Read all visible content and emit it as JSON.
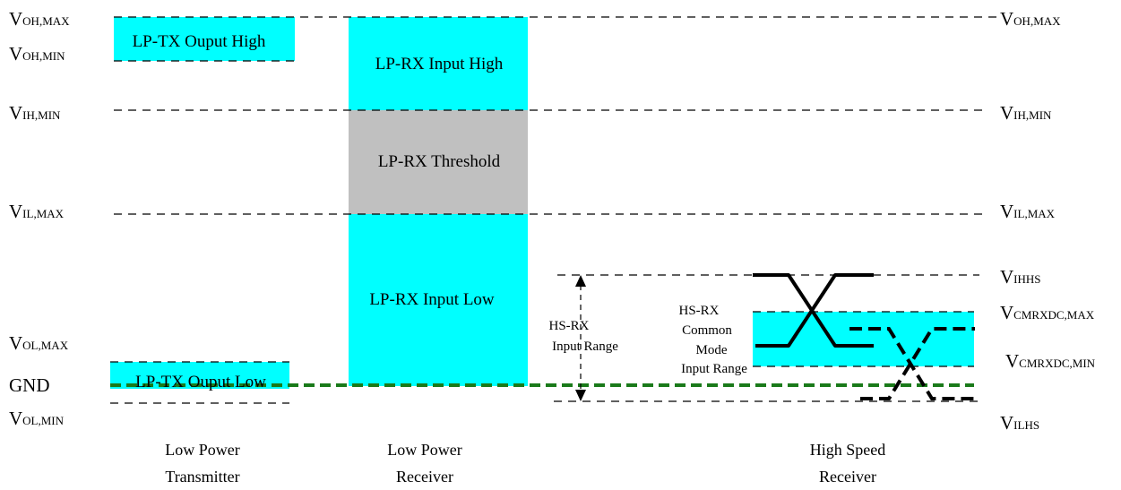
{
  "levels_left": {
    "voh_max": {
      "main": "V",
      "sub": "OH,MAX"
    },
    "voh_min": {
      "main": "V",
      "sub": "OH,MIN"
    },
    "vih_min": {
      "main": "V",
      "sub": "IH,MIN"
    },
    "vil_max": {
      "main": "V",
      "sub": "IL,MAX"
    },
    "vol_max": {
      "main": "V",
      "sub": "OL,MAX"
    },
    "gnd": "GND",
    "vol_min": {
      "main": "V",
      "sub": "OL,MIN"
    }
  },
  "levels_right": {
    "voh_max": {
      "main": "V",
      "sub": "OH,MAX"
    },
    "vih_min": {
      "main": "V",
      "sub": "IH,MIN"
    },
    "vil_max": {
      "main": "V",
      "sub": "IL,MAX"
    },
    "vihhs": {
      "main": "V",
      "sub": "IHHS"
    },
    "vcmrxdc_max": {
      "main": "V",
      "sub": "CMRXDC,MAX"
    },
    "vcmrxdc_min": {
      "main": "V",
      "sub": "CMRXDC,MIN"
    },
    "vilhs": {
      "main": "V",
      "sub": "ILHS"
    }
  },
  "boxes": {
    "lp_tx_high": "LP-TX Ouput High",
    "lp_tx_low": "LP-TX Ouput Low",
    "lp_rx_high": "LP-RX Input High",
    "lp_rx_threshold": "LP-RX Threshold",
    "lp_rx_low": "LP-RX Input Low"
  },
  "hs_rx_input_range": [
    "HS-RX",
    "Input Range"
  ],
  "hs_rx_common_mode": [
    "HS-RX",
    "Common",
    "Mode",
    "Input Range"
  ],
  "columns": {
    "low_power_tx": [
      "Low Power",
      "Transmitter"
    ],
    "low_power_rx": [
      "Low Power",
      "Receiver"
    ],
    "high_speed_rx": [
      "High Speed",
      "Receiver"
    ]
  },
  "colors": {
    "cyan": "#00ffff",
    "gray": "#c0c0c0",
    "gnd_line": "#1a7a1a",
    "line": "#000000"
  }
}
